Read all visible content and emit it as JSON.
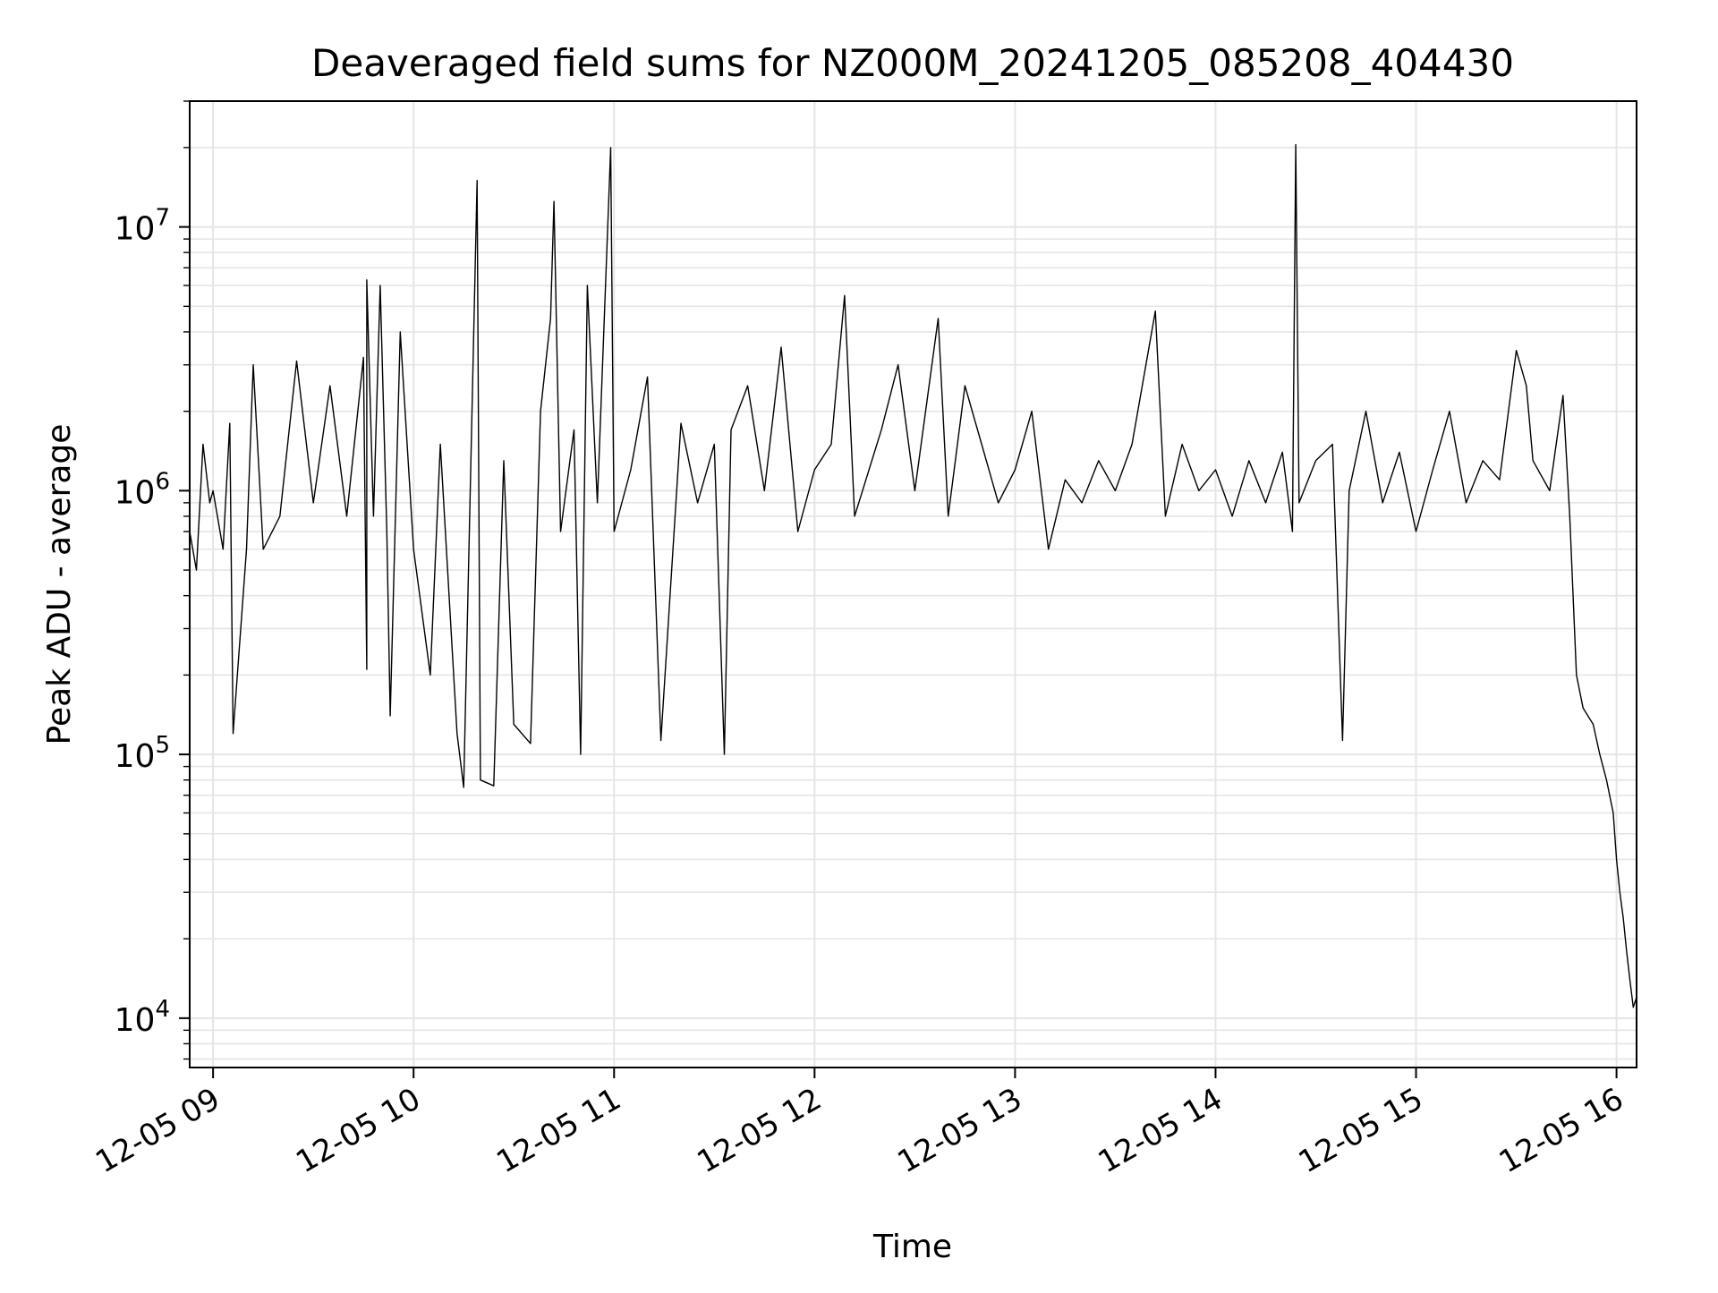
{
  "chart_data": {
    "type": "line",
    "title": "Deaveraged field sums for NZ000M_20241205_085208_404430",
    "xlabel": "Time",
    "ylabel": "Peak ADU - average",
    "yscale": "log",
    "ylim": [
      6500,
      30000000
    ],
    "xlim": [
      "12-05 08:53",
      "12-05 16:06"
    ],
    "x_ticks": [
      "12-05 09",
      "12-05 10",
      "12-05 11",
      "12-05 12",
      "12-05 13",
      "12-05 14",
      "12-05 15",
      "12-05 16"
    ],
    "y_ticks": [
      {
        "base": "10",
        "exp": "4"
      },
      {
        "base": "10",
        "exp": "5"
      },
      {
        "base": "10",
        "exp": "6"
      },
      {
        "base": "10",
        "exp": "7"
      }
    ],
    "grid": true,
    "line_color": "#000000",
    "grid_color": "#e5e5e5",
    "series": [
      {
        "points": [
          [
            "12-05 08:53",
            700000
          ],
          [
            "12-05 08:55",
            500000
          ],
          [
            "12-05 08:57",
            1500000
          ],
          [
            "12-05 08:59",
            900000
          ],
          [
            "12-05 09:00",
            1000000
          ],
          [
            "12-05 09:03",
            600000
          ],
          [
            "12-05 09:05",
            1800000
          ],
          [
            "12-05 09:06",
            120000
          ],
          [
            "12-05 09:10",
            600000
          ],
          [
            "12-05 09:12",
            3000000
          ],
          [
            "12-05 09:15",
            600000
          ],
          [
            "12-05 09:20",
            800000
          ],
          [
            "12-05 09:23",
            1800000
          ],
          [
            "12-05 09:25",
            3100000
          ],
          [
            "12-05 09:30",
            900000
          ],
          [
            "12-05 09:35",
            2500000
          ],
          [
            "12-05 09:40",
            800000
          ],
          [
            "12-05 09:45",
            3200000
          ],
          [
            "12-05 09:46",
            210000
          ],
          [
            "12-05 09:46",
            6300000
          ],
          [
            "12-05 09:48",
            800000
          ],
          [
            "12-05 09:50",
            6000000
          ],
          [
            "12-05 09:52",
            700000
          ],
          [
            "12-05 09:53",
            140000
          ],
          [
            "12-05 09:56",
            4000000
          ],
          [
            "12-05 10:00",
            600000
          ],
          [
            "12-05 10:05",
            200000
          ],
          [
            "12-05 10:08",
            1500000
          ],
          [
            "12-05 10:13",
            120000
          ],
          [
            "12-05 10:15",
            75000
          ],
          [
            "12-05 10:19",
            15000000
          ],
          [
            "12-05 10:20",
            80000
          ],
          [
            "12-05 10:24",
            76000
          ],
          [
            "12-05 10:27",
            1300000
          ],
          [
            "12-05 10:30",
            130000
          ],
          [
            "12-05 10:35",
            110000
          ],
          [
            "12-05 10:38",
            2000000
          ],
          [
            "12-05 10:41",
            4500000
          ],
          [
            "12-05 10:42",
            12500000
          ],
          [
            "12-05 10:44",
            700000
          ],
          [
            "12-05 10:48",
            1700000
          ],
          [
            "12-05 10:50",
            100000
          ],
          [
            "12-05 10:52",
            6000000
          ],
          [
            "12-05 10:55",
            900000
          ],
          [
            "12-05 10:59",
            20000000
          ],
          [
            "12-05 11:00",
            700000
          ],
          [
            "12-05 11:05",
            1200000
          ],
          [
            "12-05 11:10",
            2700000
          ],
          [
            "12-05 11:14",
            113000
          ],
          [
            "12-05 11:20",
            1800000
          ],
          [
            "12-05 11:25",
            900000
          ],
          [
            "12-05 11:30",
            1500000
          ],
          [
            "12-05 11:33",
            100000
          ],
          [
            "12-05 11:35",
            1700000
          ],
          [
            "12-05 11:40",
            2500000
          ],
          [
            "12-05 11:45",
            1000000
          ],
          [
            "12-05 11:50",
            3500000
          ],
          [
            "12-05 11:55",
            700000
          ],
          [
            "12-05 12:00",
            1200000
          ],
          [
            "12-05 12:05",
            1500000
          ],
          [
            "12-05 12:09",
            5500000
          ],
          [
            "12-05 12:12",
            800000
          ],
          [
            "12-05 12:20",
            1700000
          ],
          [
            "12-05 12:25",
            3000000
          ],
          [
            "12-05 12:30",
            1000000
          ],
          [
            "12-05 12:37",
            4500000
          ],
          [
            "12-05 12:40",
            800000
          ],
          [
            "12-05 12:45",
            2500000
          ],
          [
            "12-05 12:50",
            1500000
          ],
          [
            "12-05 12:55",
            900000
          ],
          [
            "12-05 13:00",
            1200000
          ],
          [
            "12-05 13:05",
            2000000
          ],
          [
            "12-05 13:10",
            600000
          ],
          [
            "12-05 13:15",
            1100000
          ],
          [
            "12-05 13:20",
            900000
          ],
          [
            "12-05 13:25",
            1300000
          ],
          [
            "12-05 13:30",
            1000000
          ],
          [
            "12-05 13:35",
            1500000
          ],
          [
            "12-05 13:42",
            4800000
          ],
          [
            "12-05 13:45",
            800000
          ],
          [
            "12-05 13:50",
            1500000
          ],
          [
            "12-05 13:55",
            1000000
          ],
          [
            "12-05 14:00",
            1200000
          ],
          [
            "12-05 14:05",
            800000
          ],
          [
            "12-05 14:10",
            1300000
          ],
          [
            "12-05 14:15",
            900000
          ],
          [
            "12-05 14:20",
            1400000
          ],
          [
            "12-05 14:23",
            700000
          ],
          [
            "12-05 14:24",
            20500000
          ],
          [
            "12-05 14:25",
            900000
          ],
          [
            "12-05 14:30",
            1300000
          ],
          [
            "12-05 14:35",
            1500000
          ],
          [
            "12-05 14:38",
            113000
          ],
          [
            "12-05 14:40",
            1000000
          ],
          [
            "12-05 14:45",
            2000000
          ],
          [
            "12-05 14:50",
            900000
          ],
          [
            "12-05 14:55",
            1400000
          ],
          [
            "12-05 15:00",
            700000
          ],
          [
            "12-05 15:05",
            1200000
          ],
          [
            "12-05 15:10",
            2000000
          ],
          [
            "12-05 15:15",
            900000
          ],
          [
            "12-05 15:20",
            1300000
          ],
          [
            "12-05 15:25",
            1100000
          ],
          [
            "12-05 15:30",
            3400000
          ],
          [
            "12-05 15:33",
            2500000
          ],
          [
            "12-05 15:35",
            1300000
          ],
          [
            "12-05 15:40",
            1000000
          ],
          [
            "12-05 15:44",
            2300000
          ],
          [
            "12-05 15:46",
            800000
          ],
          [
            "12-05 15:48",
            200000
          ],
          [
            "12-05 15:50",
            150000
          ],
          [
            "12-05 15:53",
            130000
          ],
          [
            "12-05 15:55",
            100000
          ],
          [
            "12-05 15:57",
            80000
          ],
          [
            "12-05 15:59",
            60000
          ],
          [
            "12-05 16:00",
            40000
          ],
          [
            "12-05 16:01",
            30000
          ],
          [
            "12-05 16:02",
            24000
          ],
          [
            "12-05 16:03",
            18000
          ],
          [
            "12-05 16:04",
            14000
          ],
          [
            "12-05 16:05",
            11000
          ],
          [
            "12-05 16:06",
            12000
          ]
        ]
      }
    ]
  }
}
